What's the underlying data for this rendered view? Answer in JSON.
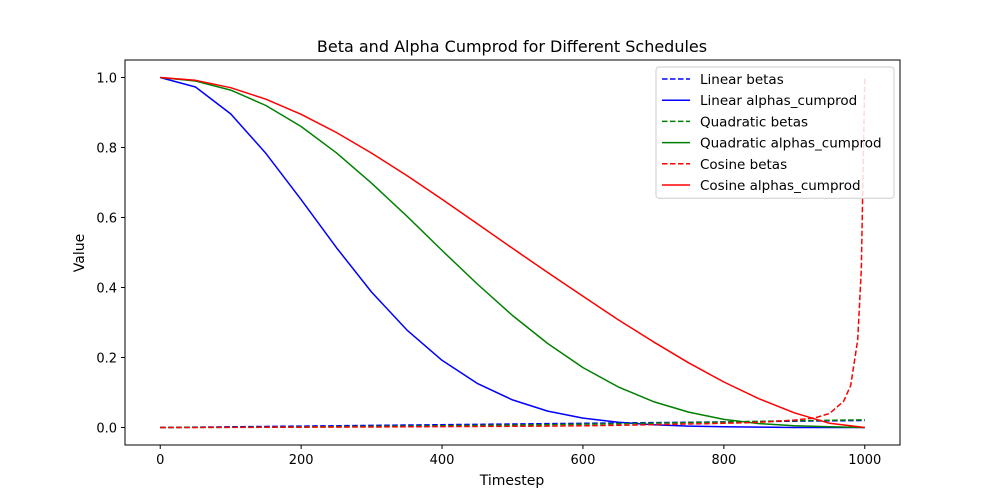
{
  "chart_data": {
    "type": "line",
    "title": "Beta and Alpha Cumprod for Different Schedules",
    "xlabel": "Timestep",
    "ylabel": "Value",
    "xlim": [
      -50,
      1050
    ],
    "ylim": [
      -0.05,
      1.05
    ],
    "xticks": [
      0,
      200,
      400,
      600,
      800,
      1000
    ],
    "yticks": [
      0.0,
      0.2,
      0.4,
      0.6,
      0.8,
      1.0
    ],
    "xtick_labels": [
      "0",
      "200",
      "400",
      "600",
      "800",
      "1000"
    ],
    "ytick_labels": [
      "0.0",
      "0.2",
      "0.4",
      "0.6",
      "0.8",
      "1.0"
    ],
    "grid": false,
    "legend_position": "top-right",
    "series": [
      {
        "name": "Linear betas",
        "color": "#0000ff",
        "style": "dashed",
        "x": [
          0,
          100,
          200,
          300,
          400,
          500,
          600,
          700,
          800,
          900,
          1000
        ],
        "y": [
          0.0001,
          0.002,
          0.004,
          0.006,
          0.008,
          0.01,
          0.012,
          0.014,
          0.016,
          0.018,
          0.02
        ]
      },
      {
        "name": "Linear alphas_cumprod",
        "color": "#0000ff",
        "style": "solid",
        "x": [
          0,
          50,
          100,
          150,
          200,
          250,
          300,
          350,
          400,
          450,
          500,
          550,
          600,
          650,
          700,
          750,
          800,
          850,
          900,
          950,
          1000
        ],
        "y": [
          1.0,
          0.973,
          0.896,
          0.783,
          0.651,
          0.514,
          0.387,
          0.279,
          0.192,
          0.126,
          0.079,
          0.047,
          0.027,
          0.015,
          0.008,
          0.004,
          0.002,
          0.001,
          0.0,
          0.0,
          0.0
        ]
      },
      {
        "name": "Quadratic betas",
        "color": "#008000",
        "style": "dashed",
        "x": [
          0,
          100,
          200,
          300,
          400,
          500,
          600,
          700,
          800,
          900,
          1000
        ],
        "y": [
          0.0001,
          0.0007,
          0.0017,
          0.0031,
          0.0049,
          0.007,
          0.0095,
          0.0124,
          0.0157,
          0.0193,
          0.022
        ]
      },
      {
        "name": "Quadratic alphas_cumprod",
        "color": "#008000",
        "style": "solid",
        "x": [
          0,
          50,
          100,
          150,
          200,
          250,
          300,
          350,
          400,
          450,
          500,
          550,
          600,
          650,
          700,
          750,
          800,
          850,
          900,
          950,
          1000
        ],
        "y": [
          1.0,
          0.99,
          0.964,
          0.92,
          0.86,
          0.785,
          0.698,
          0.604,
          0.506,
          0.41,
          0.32,
          0.24,
          0.171,
          0.116,
          0.074,
          0.044,
          0.023,
          0.011,
          0.005,
          0.002,
          0.0
        ]
      },
      {
        "name": "Cosine betas",
        "color": "#ff0000",
        "style": "dashed",
        "x": [
          0,
          100,
          200,
          300,
          400,
          500,
          600,
          700,
          800,
          850,
          900,
          930,
          950,
          970,
          980,
          990,
          995,
          1000
        ],
        "y": [
          0.0001,
          0.0003,
          0.0008,
          0.0015,
          0.0025,
          0.0035,
          0.005,
          0.008,
          0.012,
          0.015,
          0.021,
          0.028,
          0.04,
          0.075,
          0.12,
          0.25,
          0.45,
          1.0
        ]
      },
      {
        "name": "Cosine alphas_cumprod",
        "color": "#ff0000",
        "style": "solid",
        "x": [
          0,
          50,
          100,
          150,
          200,
          250,
          300,
          350,
          400,
          450,
          500,
          550,
          600,
          650,
          700,
          750,
          800,
          850,
          900,
          950,
          1000
        ],
        "y": [
          1.0,
          0.992,
          0.971,
          0.938,
          0.895,
          0.843,
          0.784,
          0.72,
          0.652,
          0.582,
          0.512,
          0.443,
          0.375,
          0.308,
          0.245,
          0.185,
          0.13,
          0.082,
          0.042,
          0.012,
          0.0
        ]
      }
    ]
  }
}
